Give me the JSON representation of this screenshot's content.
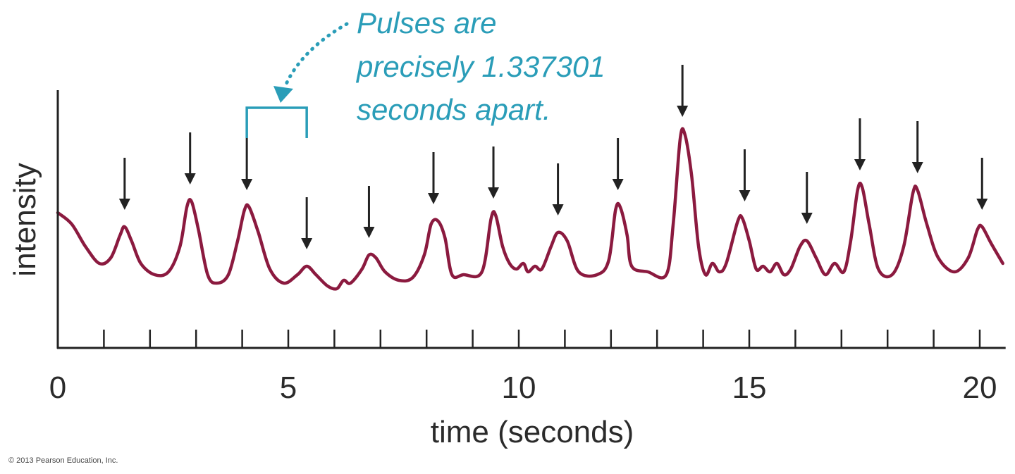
{
  "chart_data": {
    "type": "line",
    "title": "",
    "xlabel": "time (seconds)",
    "ylabel": "intensity",
    "xlim": [
      0,
      20.5
    ],
    "x_tick_labels": [
      "0",
      "5",
      "10",
      "15",
      "20"
    ],
    "x_tick_values": [
      0,
      5,
      10,
      15,
      20
    ],
    "minor_tick_step": 1,
    "grid": false,
    "pulse_period_seconds": 1.337301,
    "pulse_times": [
      1.45,
      2.87,
      4.1,
      5.4,
      6.75,
      8.15,
      9.45,
      10.85,
      12.15,
      13.55,
      14.9,
      16.25,
      17.4,
      18.65,
      20.05
    ],
    "series": [
      {
        "color": "#8b1a3f",
        "points": [
          [
            0.0,
            0.42
          ],
          [
            0.3,
            0.38
          ],
          [
            0.6,
            0.3
          ],
          [
            0.9,
            0.24
          ],
          [
            1.15,
            0.26
          ],
          [
            1.35,
            0.34
          ],
          [
            1.45,
            0.37
          ],
          [
            1.6,
            0.32
          ],
          [
            1.8,
            0.24
          ],
          [
            2.1,
            0.2
          ],
          [
            2.4,
            0.21
          ],
          [
            2.65,
            0.3
          ],
          [
            2.8,
            0.44
          ],
          [
            2.9,
            0.46
          ],
          [
            3.05,
            0.36
          ],
          [
            3.25,
            0.2
          ],
          [
            3.45,
            0.17
          ],
          [
            3.7,
            0.2
          ],
          [
            3.9,
            0.32
          ],
          [
            4.05,
            0.43
          ],
          [
            4.15,
            0.44
          ],
          [
            4.35,
            0.35
          ],
          [
            4.6,
            0.22
          ],
          [
            4.9,
            0.17
          ],
          [
            5.2,
            0.2
          ],
          [
            5.4,
            0.23
          ],
          [
            5.6,
            0.2
          ],
          [
            5.85,
            0.16
          ],
          [
            6.05,
            0.15
          ],
          [
            6.2,
            0.18
          ],
          [
            6.35,
            0.17
          ],
          [
            6.6,
            0.22
          ],
          [
            6.75,
            0.27
          ],
          [
            6.9,
            0.26
          ],
          [
            7.1,
            0.21
          ],
          [
            7.4,
            0.18
          ],
          [
            7.7,
            0.19
          ],
          [
            7.95,
            0.27
          ],
          [
            8.1,
            0.38
          ],
          [
            8.25,
            0.39
          ],
          [
            8.4,
            0.33
          ],
          [
            8.55,
            0.2
          ],
          [
            8.8,
            0.2
          ],
          [
            9.2,
            0.21
          ],
          [
            9.4,
            0.4
          ],
          [
            9.5,
            0.41
          ],
          [
            9.65,
            0.3
          ],
          [
            9.8,
            0.24
          ],
          [
            9.95,
            0.22
          ],
          [
            10.1,
            0.24
          ],
          [
            10.2,
            0.21
          ],
          [
            10.35,
            0.23
          ],
          [
            10.5,
            0.22
          ],
          [
            10.7,
            0.3
          ],
          [
            10.85,
            0.35
          ],
          [
            11.05,
            0.32
          ],
          [
            11.3,
            0.21
          ],
          [
            11.7,
            0.2
          ],
          [
            11.95,
            0.25
          ],
          [
            12.1,
            0.43
          ],
          [
            12.2,
            0.44
          ],
          [
            12.35,
            0.34
          ],
          [
            12.45,
            0.23
          ],
          [
            12.8,
            0.21
          ],
          [
            13.2,
            0.2
          ],
          [
            13.35,
            0.38
          ],
          [
            13.5,
            0.68
          ],
          [
            13.6,
            0.7
          ],
          [
            13.75,
            0.55
          ],
          [
            13.9,
            0.3
          ],
          [
            14.05,
            0.2
          ],
          [
            14.2,
            0.24
          ],
          [
            14.35,
            0.21
          ],
          [
            14.5,
            0.24
          ],
          [
            14.75,
            0.39
          ],
          [
            14.85,
            0.4
          ],
          [
            15.0,
            0.32
          ],
          [
            15.15,
            0.22
          ],
          [
            15.3,
            0.23
          ],
          [
            15.45,
            0.21
          ],
          [
            15.6,
            0.24
          ],
          [
            15.75,
            0.2
          ],
          [
            15.9,
            0.22
          ],
          [
            16.1,
            0.3
          ],
          [
            16.25,
            0.32
          ],
          [
            16.45,
            0.26
          ],
          [
            16.65,
            0.2
          ],
          [
            16.85,
            0.24
          ],
          [
            17.05,
            0.21
          ],
          [
            17.2,
            0.32
          ],
          [
            17.35,
            0.5
          ],
          [
            17.45,
            0.51
          ],
          [
            17.6,
            0.38
          ],
          [
            17.8,
            0.22
          ],
          [
            18.1,
            0.2
          ],
          [
            18.35,
            0.3
          ],
          [
            18.55,
            0.49
          ],
          [
            18.65,
            0.5
          ],
          [
            18.85,
            0.38
          ],
          [
            19.1,
            0.26
          ],
          [
            19.45,
            0.21
          ],
          [
            19.75,
            0.26
          ],
          [
            19.95,
            0.36
          ],
          [
            20.05,
            0.37
          ],
          [
            20.25,
            0.31
          ],
          [
            20.5,
            0.24
          ]
        ]
      }
    ],
    "annotations": [
      {
        "text_lines": [
          "Pulses are",
          "precisely 1.337301",
          "seconds apart."
        ],
        "color": "#2a9db8",
        "bracket_x": [
          4.1,
          5.4
        ]
      }
    ]
  },
  "copyright": "© 2013 Pearson Education, Inc."
}
